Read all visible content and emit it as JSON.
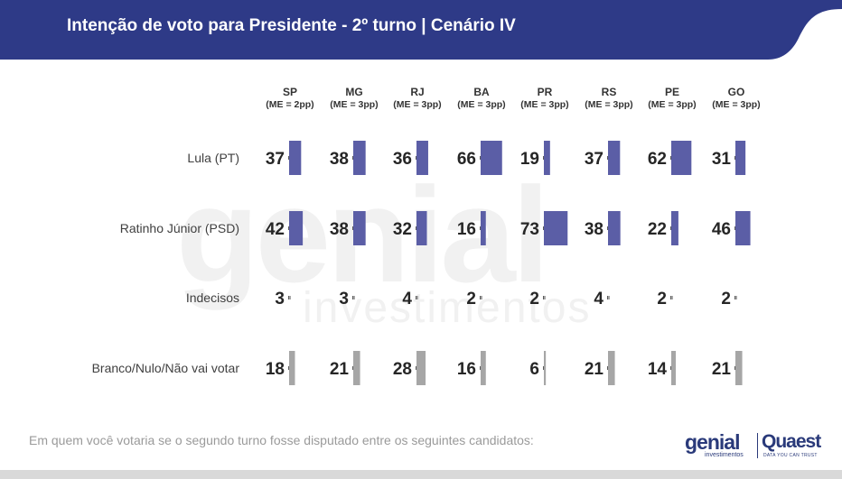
{
  "header": {
    "title": "Intenção de voto para Presidente - 2º turno | Cenário IV",
    "bg_color": "#2e3a87"
  },
  "watermark": {
    "main": "genial",
    "sub": "investimentos"
  },
  "chart_data": {
    "type": "bar",
    "title": "Intenção de voto para Presidente - 2º turno | Cenário IV",
    "states": [
      "SP",
      "MG",
      "RJ",
      "BA",
      "PR",
      "RS",
      "PE",
      "GO"
    ],
    "margins": [
      "(ME = 2pp)",
      "(ME = 3pp)",
      "(ME = 3pp)",
      "(ME = 3pp)",
      "(ME = 3pp)",
      "(ME = 3pp)",
      "(ME = 3pp)",
      "(ME = 3pp)"
    ],
    "series": [
      {
        "name": "Lula (PT)",
        "color": "#5b5ea6",
        "values": [
          37,
          38,
          36,
          66,
          19,
          37,
          62,
          31
        ]
      },
      {
        "name": "Ratinho Júnior (PSD)",
        "color": "#5b5ea6",
        "values": [
          42,
          38,
          32,
          16,
          73,
          38,
          22,
          46
        ]
      },
      {
        "name": "Indecisos",
        "color": "#a6a6a6",
        "values": [
          3,
          3,
          4,
          2,
          2,
          4,
          2,
          2
        ]
      },
      {
        "name": "Branco/Nulo/Não vai votar",
        "color": "#a6a6a6",
        "values": [
          18,
          21,
          28,
          16,
          6,
          21,
          14,
          21
        ]
      }
    ],
    "ylim": [
      0,
      100
    ]
  },
  "footer": {
    "note": "Em quem você votaria se o segundo turno fosse disputado entre os seguintes candidatos:",
    "logo_genial": "genial",
    "logo_genial_sub": "investimentos",
    "logo_quaest": "Quaest",
    "logo_quaest_sub": "DATA YOU CAN TRUST"
  }
}
